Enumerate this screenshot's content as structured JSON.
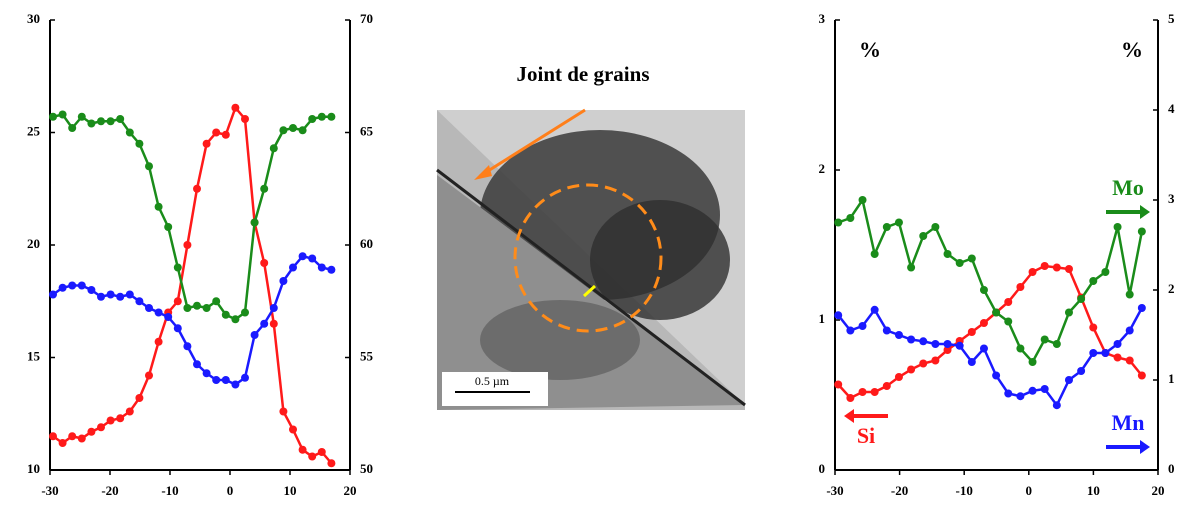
{
  "image": {
    "label": "Joint de grains",
    "scale_bar": "0.5 µm"
  },
  "chart_data": [
    {
      "type": "line",
      "x": [
        -29.5,
        -27.9,
        -26.3,
        -24.7,
        -23.1,
        -21.5,
        -19.9,
        -18.3,
        -16.7,
        -15.1,
        -13.5,
        -11.9,
        -10.3,
        -8.7,
        -7.1,
        -5.5,
        -3.9,
        -2.3,
        -0.7,
        0.9,
        2.5,
        4.1,
        5.7,
        7.3,
        8.9,
        10.5,
        12.1,
        13.7,
        15.3,
        16.9
      ],
      "xlim": [
        -30,
        20
      ],
      "xticks": [
        -30,
        -20,
        -10,
        0,
        10,
        20
      ],
      "ylim": [
        10,
        30
      ],
      "yticks": [
        10,
        15,
        20,
        25,
        30
      ],
      "y2lim": [
        50,
        70
      ],
      "y2ticks": [
        50,
        55,
        60,
        65,
        70
      ],
      "series": [
        {
          "color": "#ff1a1a",
          "values": [
            11.5,
            11.2,
            11.5,
            11.4,
            11.7,
            11.9,
            12.2,
            12.3,
            12.6,
            13.2,
            14.2,
            15.7,
            17.0,
            17.5,
            20.0,
            22.5,
            24.5,
            25.0,
            24.9,
            26.1,
            25.6,
            21.0,
            19.2,
            16.5,
            12.6,
            11.8,
            10.9,
            10.6,
            10.8,
            10.3
          ]
        },
        {
          "color": "#1a1aff",
          "values": [
            17.8,
            18.1,
            18.2,
            18.2,
            18.0,
            17.7,
            17.8,
            17.7,
            17.8,
            17.5,
            17.2,
            17.0,
            16.8,
            16.3,
            15.5,
            14.7,
            14.3,
            14.0,
            14.0,
            13.8,
            14.1,
            16.0,
            16.5,
            17.2,
            18.4,
            19.0,
            19.5,
            19.4,
            19.0,
            18.9
          ]
        },
        {
          "color": "#1a8c1a",
          "axis": "y2",
          "values": [
            65.7,
            65.8,
            65.2,
            65.7,
            65.4,
            65.5,
            65.5,
            65.6,
            65.0,
            64.5,
            63.5,
            61.7,
            60.8,
            59.0,
            57.2,
            57.3,
            57.2,
            57.5,
            56.9,
            56.7,
            57.0,
            61.0,
            62.5,
            64.3,
            65.1,
            65.2,
            65.1,
            65.6,
            65.7,
            65.7
          ]
        }
      ]
    },
    {
      "type": "line",
      "x": [
        -29.5,
        -27.62,
        -25.74,
        -23.86,
        -21.98,
        -20.1,
        -18.22,
        -16.34,
        -14.46,
        -12.58,
        -10.7,
        -8.82,
        -6.94,
        -5.06,
        -3.18,
        -1.3,
        0.58,
        2.46,
        4.34,
        6.22,
        8.1,
        9.98,
        11.86,
        13.74,
        15.62,
        17.5
      ],
      "xlim": [
        -30,
        20
      ],
      "xticks": [
        -30,
        -20,
        -10,
        0,
        10,
        20
      ],
      "ylim": [
        0,
        3
      ],
      "yticks": [
        0,
        1,
        2,
        3
      ],
      "y2lim": [
        0,
        5
      ],
      "y2ticks": [
        0,
        1,
        2,
        3,
        4,
        5
      ],
      "series": [
        {
          "name": "Si",
          "color": "#ff1a1a",
          "values": [
            0.57,
            0.48,
            0.52,
            0.52,
            0.56,
            0.62,
            0.67,
            0.71,
            0.73,
            0.8,
            0.86,
            0.92,
            0.98,
            1.05,
            1.12,
            1.22,
            1.32,
            1.36,
            1.35,
            1.34,
            1.15,
            0.95,
            0.78,
            0.75,
            0.73,
            0.63
          ]
        },
        {
          "name": "Mo",
          "color": "#1a8c1a",
          "axis": "y2",
          "values": [
            2.75,
            2.8,
            3.0,
            2.4,
            2.7,
            2.75,
            2.25,
            2.6,
            2.7,
            2.4,
            2.3,
            2.35,
            2.0,
            1.75,
            1.65,
            1.35,
            1.2,
            1.45,
            1.4,
            1.75,
            1.9,
            2.1,
            2.2,
            2.7,
            1.95,
            2.65
          ]
        },
        {
          "name": "Mn",
          "color": "#1a1aff",
          "axis": "y2",
          "values": [
            1.72,
            1.55,
            1.6,
            1.78,
            1.55,
            1.5,
            1.45,
            1.43,
            1.4,
            1.4,
            1.38,
            1.2,
            1.35,
            1.05,
            0.85,
            0.82,
            0.88,
            0.9,
            0.72,
            1.0,
            1.1,
            1.3,
            1.3,
            1.4,
            1.55,
            1.8
          ]
        }
      ],
      "annotations": [
        "%",
        "%"
      ]
    }
  ]
}
